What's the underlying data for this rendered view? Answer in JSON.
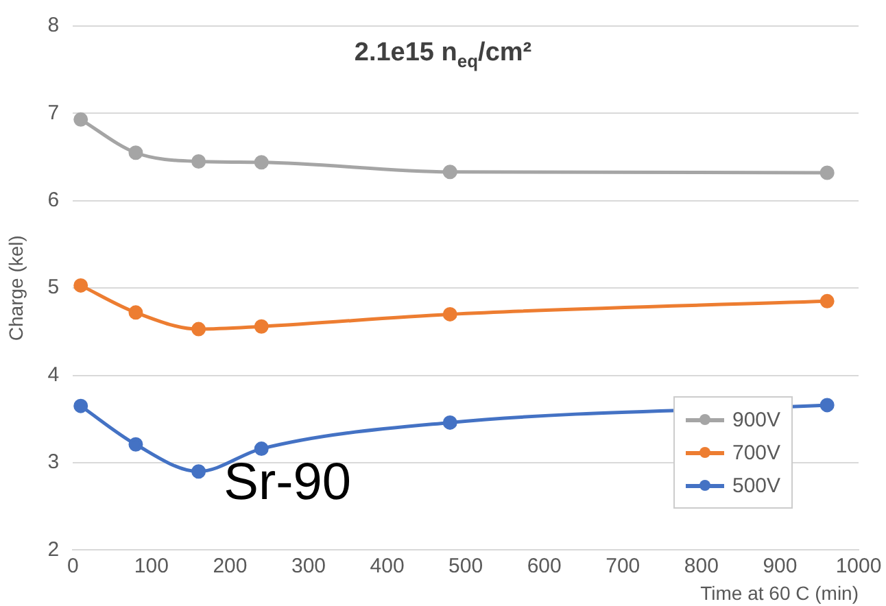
{
  "chart_data": {
    "type": "line",
    "title": "2.1e15 n$_{eq}$/cm²",
    "xlabel": "Time at 60 C (min)",
    "ylabel": "Charge (kel)",
    "x": [
      10,
      80,
      160,
      240,
      480,
      960
    ],
    "series": [
      {
        "name": "900V",
        "color": "#a5a5a5",
        "values": [
          6.93,
          6.55,
          6.45,
          6.44,
          6.33,
          6.32
        ]
      },
      {
        "name": "700V",
        "color": "#ed7d31",
        "values": [
          5.03,
          4.72,
          4.53,
          4.56,
          4.7,
          4.85
        ]
      },
      {
        "name": "500V",
        "color": "#4472c4",
        "values": [
          3.65,
          3.21,
          2.9,
          3.16,
          3.46,
          3.66
        ]
      }
    ],
    "xlim": [
      0,
      1000
    ],
    "xticks": [
      0,
      100,
      200,
      300,
      400,
      500,
      600,
      700,
      800,
      900,
      1000
    ],
    "ylim": [
      2,
      8
    ],
    "yticks": [
      2,
      3,
      4,
      5,
      6,
      7,
      8
    ],
    "grid": "y",
    "legend": "bottom right",
    "marker": "circle",
    "line_style": "solid",
    "annotations": [
      "Sr-90"
    ]
  }
}
